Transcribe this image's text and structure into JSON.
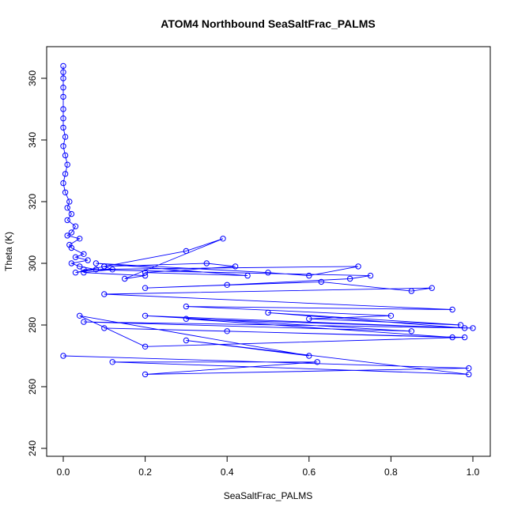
{
  "chart_data": {
    "type": "line",
    "title": "ATOM4 Northbound SeaSaltFrac_PALMS",
    "xlabel": "SeaSaltFrac_PALMS",
    "ylabel": "Theta (K)",
    "xlim": [
      0,
      1
    ],
    "ylim": [
      240,
      365
    ],
    "x_ticks": [
      "0.0",
      "0.2",
      "0.4",
      "0.6",
      "0.8",
      "1.0"
    ],
    "y_ticks": [
      "240",
      "260",
      "280",
      "300",
      "320",
      "340",
      "360"
    ],
    "grid": false,
    "legend": "none",
    "series_color": "#0000ff",
    "series": [
      {
        "x": [
          0.0,
          0.0,
          0.0,
          0.0,
          0.0,
          0.0,
          0.0,
          0.0,
          0.005,
          0.0,
          0.005,
          0.01,
          0.005,
          0.0,
          0.005,
          0.015,
          0.01,
          0.02,
          0.01,
          0.03,
          0.02,
          0.01,
          0.04,
          0.015,
          0.02,
          0.05,
          0.03,
          0.06,
          0.02,
          0.04,
          0.08,
          0.03,
          0.1,
          0.12,
          0.05,
          0.2,
          0.15,
          0.39,
          0.3,
          0.1,
          0.35,
          0.42,
          0.2,
          0.45,
          0.08,
          0.5,
          0.6,
          0.72,
          0.05,
          0.75,
          0.7,
          0.4,
          0.2,
          0.63,
          0.85,
          0.9,
          0.1,
          0.95,
          0.3,
          0.8,
          0.6,
          0.97,
          0.5,
          0.98,
          0.2,
          0.85,
          0.05,
          1.0,
          0.3,
          0.95,
          0.4,
          0.1,
          0.98,
          0.2,
          0.04,
          0.6,
          0.3,
          0.99,
          0.12,
          0.62,
          0.2,
          0.99,
          0.0
        ],
        "y": [
          364,
          362,
          360,
          357,
          354,
          350,
          347,
          344,
          341,
          338,
          335,
          332,
          329,
          326,
          323,
          320,
          318,
          316,
          314,
          312,
          310,
          309,
          308,
          306,
          305,
          303,
          302,
          301,
          300,
          299,
          298,
          297,
          299,
          298,
          297,
          296,
          295,
          308,
          304,
          299,
          300,
          299,
          297,
          296,
          300,
          297,
          296,
          299,
          298,
          296,
          295,
          293,
          292,
          294,
          291,
          292,
          290,
          285,
          286,
          283,
          282,
          280,
          284,
          279,
          283,
          278,
          281,
          279,
          282,
          276,
          278,
          279,
          276,
          273,
          283,
          270,
          275,
          264,
          268,
          268,
          264,
          266,
          270
        ]
      }
    ]
  }
}
